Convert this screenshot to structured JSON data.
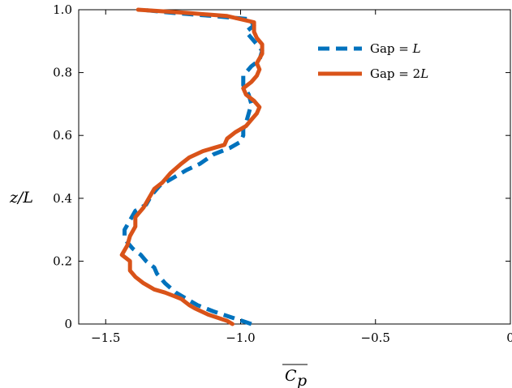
{
  "chart_data": {
    "type": "line",
    "xlabel": "C_p",
    "ylabel": "z/L",
    "xlim": [
      -1.6,
      0
    ],
    "ylim": [
      0,
      1.0
    ],
    "x_ticks": [
      -1.5,
      -1.0,
      -0.5,
      0
    ],
    "x_tick_labels": [
      "−1.5",
      "−1.0",
      "−0.5",
      "0"
    ],
    "y_ticks": [
      0,
      0.2,
      0.4,
      0.6,
      0.8,
      1.0
    ],
    "y_tick_labels": [
      "0",
      "0.2",
      "0.4",
      "0.6",
      "0.8",
      "1.0"
    ],
    "grid": false,
    "legend_position": "top-right",
    "series": [
      {
        "name": "Gap = L",
        "color": "#0072BD",
        "style": "dashed",
        "points": [
          [
            -0.96,
            0.0
          ],
          [
            -1.03,
            0.02
          ],
          [
            -1.1,
            0.04
          ],
          [
            -1.16,
            0.06
          ],
          [
            -1.2,
            0.08
          ],
          [
            -1.24,
            0.1
          ],
          [
            -1.28,
            0.13
          ],
          [
            -1.31,
            0.16
          ],
          [
            -1.32,
            0.18
          ],
          [
            -1.35,
            0.2
          ],
          [
            -1.37,
            0.22
          ],
          [
            -1.4,
            0.24
          ],
          [
            -1.43,
            0.27
          ],
          [
            -1.43,
            0.3
          ],
          [
            -1.41,
            0.33
          ],
          [
            -1.39,
            0.36
          ],
          [
            -1.35,
            0.38
          ],
          [
            -1.33,
            0.41
          ],
          [
            -1.3,
            0.44
          ],
          [
            -1.26,
            0.46
          ],
          [
            -1.2,
            0.49
          ],
          [
            -1.15,
            0.51
          ],
          [
            -1.1,
            0.54
          ],
          [
            -1.04,
            0.56
          ],
          [
            -1.0,
            0.58
          ],
          [
            -0.99,
            0.6
          ],
          [
            -0.99,
            0.62
          ],
          [
            -0.98,
            0.64
          ],
          [
            -0.97,
            0.67
          ],
          [
            -0.96,
            0.7
          ],
          [
            -0.97,
            0.73
          ],
          [
            -0.99,
            0.76
          ],
          [
            -0.99,
            0.79
          ],
          [
            -0.96,
            0.82
          ],
          [
            -0.93,
            0.84
          ],
          [
            -0.92,
            0.87
          ],
          [
            -0.94,
            0.89
          ],
          [
            -0.96,
            0.91
          ],
          [
            -0.98,
            0.93
          ],
          [
            -0.95,
            0.95
          ],
          [
            -0.97,
            0.97
          ],
          [
            -1.1,
            0.98
          ],
          [
            -1.25,
            0.99
          ],
          [
            -1.37,
            1.0
          ]
        ]
      },
      {
        "name": "Gap = 2L",
        "color": "#D95319",
        "style": "solid",
        "points": [
          [
            -1.03,
            0.0
          ],
          [
            -1.05,
            0.01
          ],
          [
            -1.12,
            0.03
          ],
          [
            -1.17,
            0.05
          ],
          [
            -1.19,
            0.06
          ],
          [
            -1.22,
            0.08
          ],
          [
            -1.25,
            0.09
          ],
          [
            -1.28,
            0.1
          ],
          [
            -1.32,
            0.11
          ],
          [
            -1.36,
            0.13
          ],
          [
            -1.39,
            0.15
          ],
          [
            -1.41,
            0.17
          ],
          [
            -1.41,
            0.2
          ],
          [
            -1.44,
            0.22
          ],
          [
            -1.42,
            0.25
          ],
          [
            -1.41,
            0.28
          ],
          [
            -1.39,
            0.31
          ],
          [
            -1.39,
            0.34
          ],
          [
            -1.36,
            0.37
          ],
          [
            -1.34,
            0.4
          ],
          [
            -1.32,
            0.43
          ],
          [
            -1.29,
            0.45
          ],
          [
            -1.26,
            0.48
          ],
          [
            -1.22,
            0.51
          ],
          [
            -1.19,
            0.53
          ],
          [
            -1.14,
            0.55
          ],
          [
            -1.1,
            0.56
          ],
          [
            -1.06,
            0.57
          ],
          [
            -1.05,
            0.59
          ],
          [
            -1.02,
            0.61
          ],
          [
            -0.98,
            0.63
          ],
          [
            -0.96,
            0.65
          ],
          [
            -0.94,
            0.67
          ],
          [
            -0.93,
            0.69
          ],
          [
            -0.95,
            0.71
          ],
          [
            -0.98,
            0.73
          ],
          [
            -0.99,
            0.75
          ],
          [
            -0.96,
            0.77
          ],
          [
            -0.94,
            0.79
          ],
          [
            -0.93,
            0.81
          ],
          [
            -0.94,
            0.83
          ],
          [
            -0.92,
            0.86
          ],
          [
            -0.92,
            0.89
          ],
          [
            -0.94,
            0.91
          ],
          [
            -0.95,
            0.93
          ],
          [
            -0.95,
            0.96
          ],
          [
            -1.05,
            0.98
          ],
          [
            -1.2,
            0.99
          ],
          [
            -1.38,
            1.0
          ]
        ]
      }
    ],
    "legend": [
      "Gap = L",
      "Gap = 2L"
    ]
  },
  "legend": {
    "entry1_prefix": "Gap = ",
    "entry1_var": "L",
    "entry2_prefix": "Gap = 2",
    "entry2_var": "L"
  },
  "labels": {
    "ylabel": "z/L",
    "xlabel_main": "C",
    "xlabel_sub": "p"
  }
}
